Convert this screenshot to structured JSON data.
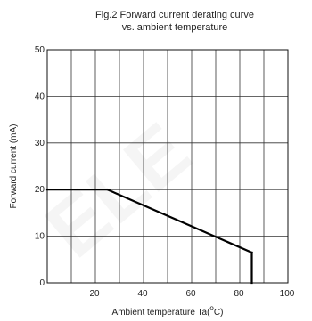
{
  "chart_data": {
    "type": "line",
    "title_line1": "Fig.2 Forward current derating curve",
    "title_line2": "vs. ambient temperature",
    "xlabel": "Ambient temperature Ta(",
    "xlabel_deg": "o",
    "xlabel_unit": "C)",
    "ylabel": "Forward current (mA)",
    "xlim": [
      0,
      100
    ],
    "ylim": [
      0,
      50
    ],
    "x_grid": [
      0,
      10,
      20,
      30,
      40,
      50,
      60,
      70,
      80,
      90,
      100
    ],
    "y_grid": [
      0,
      10,
      20,
      30,
      40,
      50
    ],
    "x_ticks": [
      {
        "value": 20,
        "label": "20"
      },
      {
        "value": 40,
        "label": "40"
      },
      {
        "value": 60,
        "label": "60"
      },
      {
        "value": 80,
        "label": "80"
      },
      {
        "value": 100,
        "label": "100"
      }
    ],
    "y_ticks": [
      {
        "value": 0,
        "label": "0"
      },
      {
        "value": 10,
        "label": "10"
      },
      {
        "value": 20,
        "label": "20"
      },
      {
        "value": 30,
        "label": "30"
      },
      {
        "value": 40,
        "label": "40"
      },
      {
        "value": 50,
        "label": "50"
      }
    ],
    "grid": true,
    "series": [
      {
        "points": [
          [
            0,
            20
          ],
          [
            25,
            20
          ],
          [
            85,
            6.5
          ],
          [
            85,
            0
          ]
        ],
        "color": "#000000"
      }
    ]
  }
}
